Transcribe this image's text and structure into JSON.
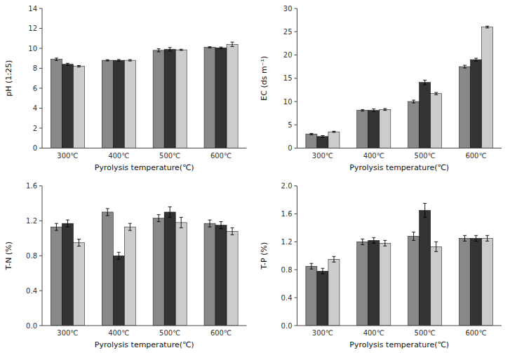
{
  "chart_data": [
    {
      "type": "bar",
      "categories": [
        "300℃",
        "400℃",
        "500℃",
        "600℃"
      ],
      "x_label": "Pyrolysis temperature(℃)",
      "y_label": "pH (1:25)",
      "series": [
        {
          "color": "#888888",
          "values": [
            8.9,
            8.8,
            9.8,
            10.1
          ],
          "errors": [
            0.12,
            0.06,
            0.15,
            0.06
          ]
        },
        {
          "color": "#333333",
          "values": [
            8.4,
            8.8,
            9.9,
            10.05
          ],
          "errors": [
            0.1,
            0.08,
            0.18,
            0.08
          ]
        },
        {
          "color": "#cccccc",
          "values": [
            8.2,
            8.8,
            9.85,
            10.4
          ],
          "errors": [
            0.08,
            0.07,
            0.06,
            0.22
          ]
        }
      ],
      "ylim": [
        0,
        14
      ],
      "yticks": [
        0,
        2,
        4,
        6,
        8,
        10,
        12,
        14
      ],
      "grid": false
    },
    {
      "type": "bar",
      "categories": [
        "300℃",
        "400℃",
        "500℃",
        "600℃"
      ],
      "x_label": "Pyrolysis temperature(℃)",
      "y_label": "EC (ds m⁻¹)",
      "series": [
        {
          "color": "#888888",
          "values": [
            3.0,
            8.1,
            10.0,
            17.5
          ],
          "errors": [
            0.15,
            0.15,
            0.3,
            0.3
          ]
        },
        {
          "color": "#333333",
          "values": [
            2.5,
            8.1,
            14.1,
            19.0
          ],
          "errors": [
            0.2,
            0.3,
            0.5,
            0.3
          ]
        },
        {
          "color": "#cccccc",
          "values": [
            3.5,
            8.3,
            11.7,
            26.0
          ],
          "errors": [
            0.12,
            0.2,
            0.25,
            0.2
          ]
        }
      ],
      "ylim": [
        0,
        30
      ],
      "yticks": [
        0,
        5,
        10,
        15,
        20,
        25,
        30
      ],
      "grid": false
    },
    {
      "type": "bar",
      "categories": [
        "300℃",
        "400℃",
        "500℃",
        "600℃"
      ],
      "x_label": "Pyrolysis temperature(℃)",
      "y_label": "T-N (%)",
      "series": [
        {
          "color": "#888888",
          "values": [
            1.13,
            1.3,
            1.23,
            1.17
          ],
          "errors": [
            0.04,
            0.04,
            0.04,
            0.04
          ]
        },
        {
          "color": "#333333",
          "values": [
            1.17,
            0.8,
            1.3,
            1.15
          ],
          "errors": [
            0.04,
            0.04,
            0.06,
            0.04
          ]
        },
        {
          "color": "#cccccc",
          "values": [
            0.95,
            1.13,
            1.18,
            1.08
          ],
          "errors": [
            0.04,
            0.04,
            0.06,
            0.04
          ]
        }
      ],
      "ylim": [
        0,
        1.6
      ],
      "yticks": [
        {
          "value": 0,
          "label": "0.0"
        },
        0.4,
        0.8,
        1.2,
        1.6
      ],
      "grid": false
    },
    {
      "type": "bar",
      "categories": [
        "300℃",
        "400℃",
        "500℃",
        "600℃"
      ],
      "x_label": "Pyrolysis temperature(℃)",
      "y_label": "T-P (%)",
      "series": [
        {
          "color": "#888888",
          "values": [
            0.85,
            1.2,
            1.28,
            1.25
          ],
          "errors": [
            0.04,
            0.04,
            0.06,
            0.04
          ]
        },
        {
          "color": "#333333",
          "values": [
            0.78,
            1.22,
            1.65,
            1.25
          ],
          "errors": [
            0.04,
            0.04,
            0.1,
            0.04
          ]
        },
        {
          "color": "#cccccc",
          "values": [
            0.95,
            1.18,
            1.13,
            1.25
          ],
          "errors": [
            0.04,
            0.04,
            0.07,
            0.04
          ]
        }
      ],
      "ylim": [
        0,
        2
      ],
      "yticks": [
        {
          "value": 0,
          "label": "0.0"
        },
        0.4,
        0.8,
        1.2,
        1.6,
        {
          "value": 2,
          "label": "2.0"
        }
      ],
      "grid": false
    }
  ]
}
